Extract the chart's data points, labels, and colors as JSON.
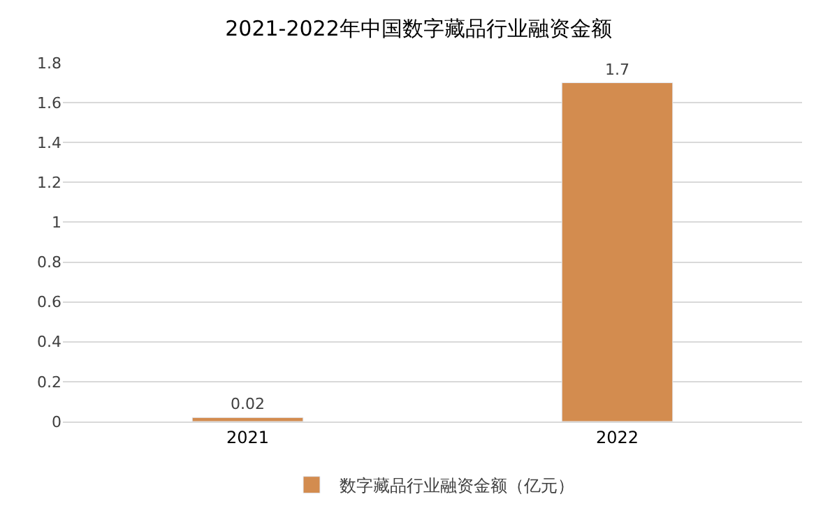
{
  "chart_data": {
    "type": "bar",
    "title": "2021-2022年中国数字藏品行业融资金额",
    "categories": [
      "2021",
      "2022"
    ],
    "series": [
      {
        "name": "数字藏品行业融资金额（亿元）",
        "color": "#d38c4f",
        "values": [
          0.02,
          1.7
        ]
      }
    ],
    "ylim": [
      0,
      1.8
    ],
    "yticks": [
      0,
      {
        "value": 0.2,
        "label": "0.2"
      },
      {
        "value": 0.4,
        "label": "0.4"
      },
      {
        "value": 0.6,
        "label": "0.6"
      },
      {
        "value": 0.8,
        "label": "0.8"
      },
      1,
      {
        "value": 1.2,
        "label": "1.2"
      },
      {
        "value": 1.4,
        "label": "1.4"
      },
      {
        "value": 1.6,
        "label": "1.6"
      },
      {
        "value": 1.8,
        "label": "1.8"
      }
    ],
    "grid": "y",
    "legend": "bottom",
    "data_labels": true
  }
}
